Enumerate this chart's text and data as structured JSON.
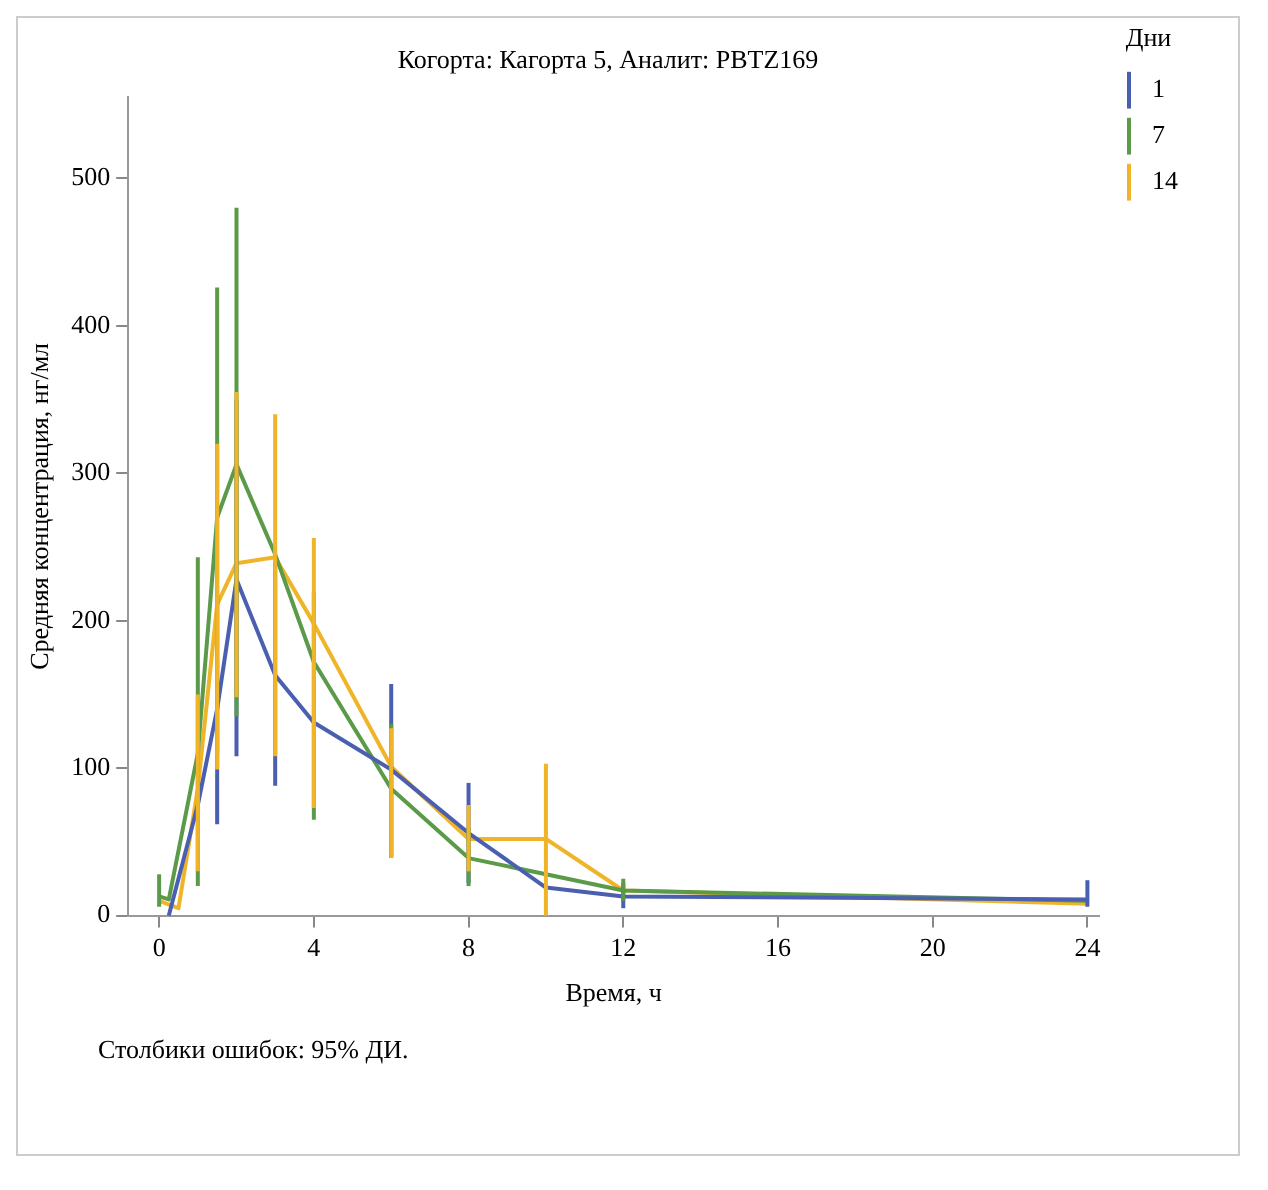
{
  "chart_data": {
    "type": "line",
    "title": "Когорта: Кагорта 5, Аналит: PBTZ169",
    "xlabel": "Время, ч",
    "ylabel": "Средняя концентрация, нг/мл",
    "legend_title": "Дни",
    "legend": "right",
    "grid": false,
    "marker": "none",
    "line_style": "solid",
    "xlim": [
      -0.8,
      24.3
    ],
    "xticks": [
      0,
      4,
      8,
      12,
      16,
      20,
      24
    ],
    "ylim": [
      0,
      555
    ],
    "yticks": [
      0,
      100,
      200,
      300,
      400,
      500
    ],
    "annotations": [
      "Столбики ошибок: 95% ДИ."
    ],
    "series": [
      {
        "name": "1",
        "color": "#4a5fb0",
        "x": [
          0.25,
          1,
          1.5,
          2,
          3,
          4,
          6,
          8,
          10,
          12,
          24
        ],
        "values": [
          0,
          75,
          140,
          228,
          163,
          131,
          99,
          56,
          19,
          13,
          11
        ],
        "errors": [
          null,
          null,
          [
            62,
            215
          ],
          [
            108,
            350
          ],
          [
            88,
            240
          ],
          null,
          [
            39,
            157
          ],
          [
            22,
            90
          ],
          null,
          [
            5,
            22
          ],
          [
            6,
            24
          ]
        ]
      },
      {
        "name": "7",
        "color": "#5a9a48",
        "x": [
          0,
          0.25,
          1,
          1.5,
          2,
          3,
          4,
          6,
          8,
          10,
          12,
          24
        ],
        "values": [
          13,
          11,
          110,
          270,
          306,
          245,
          172,
          86,
          39,
          28,
          17,
          10
        ],
        "errors": [
          [
            6,
            28
          ],
          null,
          [
            20,
            243
          ],
          [
            110,
            426
          ],
          [
            135,
            480
          ],
          null,
          [
            65,
            219
          ],
          [
            40,
            130
          ],
          [
            20,
            60
          ],
          null,
          [
            10,
            25
          ],
          null
        ]
      },
      {
        "name": "14",
        "color": "#f0b429",
        "x": [
          0,
          0.5,
          1,
          1.5,
          2,
          3,
          4,
          6,
          8,
          10,
          12,
          24
        ],
        "values": [
          10,
          5,
          86,
          211,
          239,
          243,
          198,
          101,
          52,
          52,
          17,
          8
        ],
        "errors": [
          null,
          null,
          [
            30,
            150
          ],
          [
            99,
            320
          ],
          [
            148,
            355
          ],
          [
            108,
            340
          ],
          [
            73,
            256
          ],
          [
            39,
            127
          ],
          [
            30,
            75
          ],
          [
            0,
            103
          ],
          null,
          null
        ]
      }
    ]
  }
}
